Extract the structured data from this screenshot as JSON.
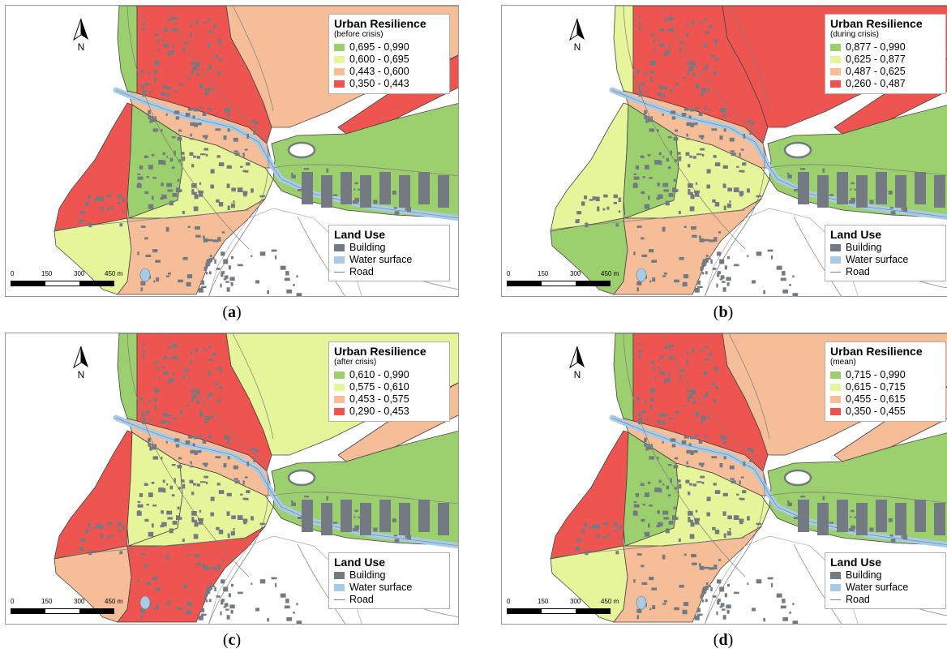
{
  "colors": {
    "high": "#9ccf6e",
    "mid_high": "#e6f59a",
    "mid_low": "#f5be98",
    "low": "#ef5550",
    "building": "#737a82",
    "water": "#a9cbe6",
    "road": "#7d7d7d"
  },
  "common": {
    "legend_title": "Urban Resilience",
    "north_label": "N",
    "landuse_title": "Land Use",
    "landuse_items": [
      "Building",
      "Water surface",
      "Road"
    ],
    "scale_ticks": [
      "0",
      "150",
      "300",
      "450 m"
    ]
  },
  "panels": [
    {
      "id": "a",
      "caption_letter": "a",
      "legend_subtitle": "(before crisis)",
      "classes": [
        "0,695 - 0,990",
        "0,600 - 0,695",
        "0,443 - 0,600",
        "0,350 - 0,443"
      ],
      "zones": {
        "north_strip": "high",
        "west_coast": "low",
        "sw_coast": "mid_high",
        "center_west": "high",
        "center_east": "mid_high",
        "river_north": "mid_low",
        "north_block": "low",
        "south": "mid_low",
        "ne_land": "mid_low",
        "ne_wedge": "low",
        "east": "high"
      }
    },
    {
      "id": "b",
      "caption_letter": "b",
      "legend_subtitle": "(during crisis)",
      "classes": [
        "0,877 - 0,990",
        "0,625 - 0,877",
        "0,487 - 0,625",
        "0,260 - 0,487"
      ],
      "zones": {
        "north_strip": "mid_high",
        "west_coast": "mid_high",
        "sw_coast": "high",
        "center_west": "high",
        "center_east": "mid_high",
        "river_north": "mid_low",
        "north_block": "low",
        "south": "mid_low",
        "ne_land": "low",
        "ne_wedge": "low",
        "east": "high"
      }
    },
    {
      "id": "c",
      "caption_letter": "c",
      "legend_subtitle": "(after crisis)",
      "classes": [
        "0,610 - 0,990",
        "0,575 - 0,610",
        "0,453 - 0,575",
        "0,290 - 0,453"
      ],
      "zones": {
        "north_strip": "high",
        "west_coast": "low",
        "sw_coast": "mid_low",
        "center_west": "mid_high",
        "center_east": "mid_high",
        "river_north": "mid_low",
        "north_block": "low",
        "south": "low",
        "ne_land": "mid_high",
        "ne_wedge": "mid_low",
        "east": "high"
      }
    },
    {
      "id": "d",
      "caption_letter": "d",
      "legend_subtitle": "(mean)",
      "classes": [
        "0,715 - 0,990",
        "0,615 - 0,715",
        "0,455 - 0,615",
        "0,350 - 0,455"
      ],
      "zones": {
        "north_strip": "high",
        "west_coast": "low",
        "sw_coast": "mid_high",
        "center_west": "high",
        "center_east": "mid_high",
        "river_north": "mid_low",
        "north_block": "low",
        "south": "mid_low",
        "ne_land": "mid_low",
        "ne_wedge": "mid_low",
        "east": "high"
      }
    }
  ]
}
